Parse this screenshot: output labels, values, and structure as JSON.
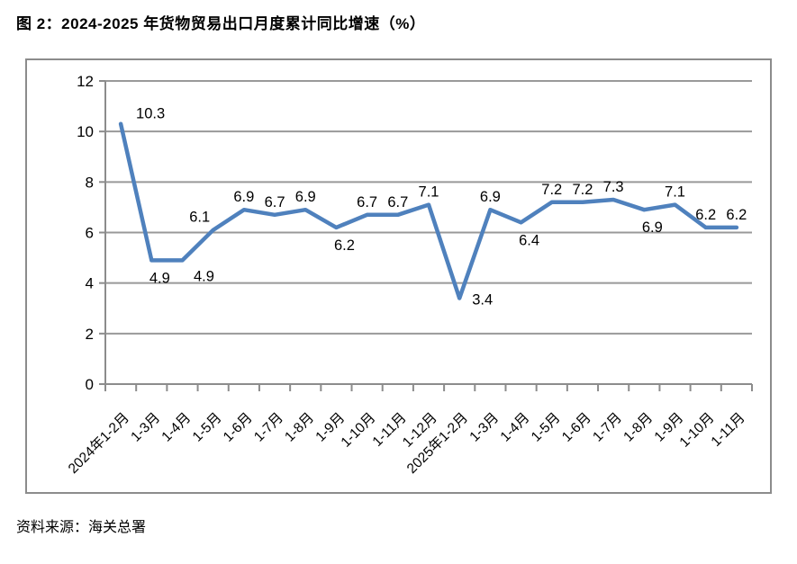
{
  "page": {
    "title": "图 2：2024-2025 年货物贸易出口月度累计同比增速（%）",
    "source_note": "资料来源：海关总署"
  },
  "chart_data": {
    "type": "line",
    "title": "2024-2025 年货物贸易出口月度累计同比增速（%）",
    "xlabel": "",
    "ylabel": "",
    "categories": [
      "2024年1-2月",
      "1-3月",
      "1-4月",
      "1-5月",
      "1-6月",
      "1-7月",
      "1-8月",
      "1-9月",
      "1-10月",
      "1-11月",
      "1-12月",
      "2025年1-2月",
      "1-3月",
      "1-4月",
      "1-5月",
      "1-6月",
      "1-7月",
      "1-8月",
      "1-9月",
      "1-10月",
      "1-11月"
    ],
    "values": [
      10.3,
      4.9,
      4.9,
      6.1,
      6.9,
      6.7,
      6.9,
      6.2,
      6.7,
      6.7,
      7.1,
      3.4,
      6.9,
      6.4,
      7.2,
      7.2,
      7.3,
      6.9,
      7.1,
      6.2,
      6.2
    ],
    "data_labels": true,
    "label_positions": [
      "above-right",
      "below",
      "below-right",
      "above-left",
      "above",
      "above",
      "above",
      "below",
      "above",
      "above",
      "above",
      "right",
      "above",
      "below",
      "above",
      "above",
      "above",
      "below",
      "above",
      "above",
      "above"
    ],
    "ylim": [
      0,
      12
    ],
    "yticks": [
      0,
      2,
      4,
      6,
      8,
      10,
      12
    ],
    "grid": true,
    "legend_position": "none",
    "colors": {
      "line": "#4F81BD",
      "grid": "#999999",
      "axis": "#8C8C8C",
      "border": "#8C8C8C",
      "text": "#000000"
    }
  }
}
